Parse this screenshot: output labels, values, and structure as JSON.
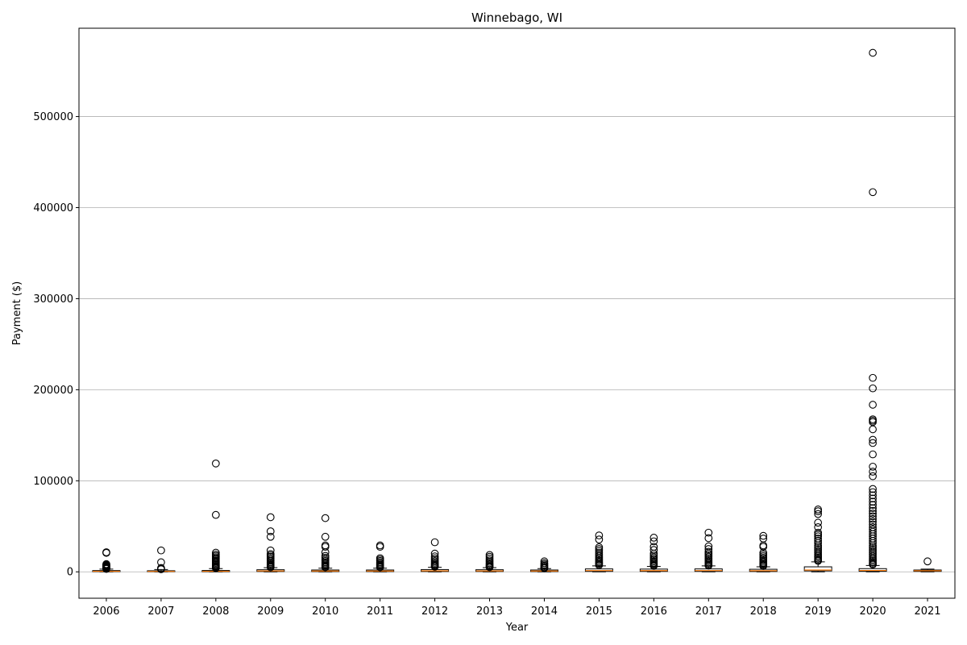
{
  "chart_data": {
    "type": "boxplot",
    "title": "Winnebago, WI",
    "xlabel": "Year",
    "ylabel": "Payment ($)",
    "categories": [
      "2006",
      "2007",
      "2008",
      "2009",
      "2010",
      "2011",
      "2012",
      "2013",
      "2014",
      "2015",
      "2016",
      "2017",
      "2018",
      "2019",
      "2020",
      "2021"
    ],
    "ylim": [
      -29000,
      597000
    ],
    "yticks": [
      0,
      100000,
      200000,
      300000,
      400000,
      500000
    ],
    "ytick_labels": [
      "0",
      "100000",
      "200000",
      "300000",
      "400000",
      "500000"
    ],
    "grid": "y",
    "colors": {
      "box": "#000000",
      "median": "#ff7f0e",
      "grid": "#b0b0b0",
      "flier": "#000000"
    },
    "boxes": [
      {
        "year": "2006",
        "q1": 200,
        "median": 600,
        "q3": 1400,
        "whislo": 0,
        "whishi": 3000,
        "fliers": [
          21500,
          20800,
          8500,
          7800,
          7200,
          6600,
          6000,
          5400,
          4900,
          4400,
          3900,
          3500,
          3200
        ]
      },
      {
        "year": "2007",
        "q1": 150,
        "median": 500,
        "q3": 1200,
        "whislo": 0,
        "whishi": 2500,
        "fliers": [
          23500,
          10500,
          4200,
          3600,
          3100,
          2800
        ]
      },
      {
        "year": "2008",
        "q1": 150,
        "median": 600,
        "q3": 1500,
        "whislo": 0,
        "whishi": 3500,
        "fliers": [
          119000,
          62500,
          21000,
          19000,
          17500,
          16000,
          14800,
          13500,
          12200,
          11000,
          9800,
          8700,
          7600,
          6600,
          5700,
          4800,
          4000
        ]
      },
      {
        "year": "2009",
        "q1": 400,
        "median": 1000,
        "q3": 2300,
        "whislo": 0,
        "whishi": 4500,
        "fliers": [
          60000,
          44500,
          38500,
          23500,
          19500,
          18000,
          16500,
          15000,
          13500,
          12000,
          10500,
          9200,
          8000,
          6900,
          5900,
          5000
        ]
      },
      {
        "year": "2010",
        "q1": 300,
        "median": 900,
        "q3": 2000,
        "whislo": 0,
        "whishi": 4000,
        "fliers": [
          59000,
          38500,
          29000,
          27500,
          21500,
          17500,
          15500,
          13500,
          12000,
          10500,
          9200,
          8000,
          6900,
          5900,
          4900
        ]
      },
      {
        "year": "2011",
        "q1": 300,
        "median": 900,
        "q3": 2000,
        "whislo": 0,
        "whishi": 4000,
        "fliers": [
          29000,
          27500,
          15000,
          13500,
          12000,
          10500,
          9200,
          8000,
          6900,
          5900,
          4900
        ]
      },
      {
        "year": "2012",
        "q1": 400,
        "median": 1100,
        "q3": 2500,
        "whislo": 0,
        "whishi": 5000,
        "fliers": [
          32500,
          20000,
          17000,
          15000,
          13200,
          11500,
          10000,
          8700,
          7500,
          6500,
          5600
        ]
      },
      {
        "year": "2013",
        "q1": 400,
        "median": 1000,
        "q3": 2300,
        "whislo": 0,
        "whishi": 4500,
        "fliers": [
          18500,
          16500,
          14500,
          12500,
          11000,
          9500,
          8200,
          7000,
          6000,
          5100
        ]
      },
      {
        "year": "2014",
        "q1": 300,
        "median": 900,
        "q3": 2000,
        "whislo": 0,
        "whishi": 3500,
        "fliers": [
          11500,
          9500,
          8000,
          6800,
          5700,
          4700,
          3900
        ]
      },
      {
        "year": "2015",
        "q1": 500,
        "median": 1400,
        "q3": 3200,
        "whislo": 0,
        "whishi": 6500,
        "fliers": [
          40000,
          35500,
          27000,
          25000,
          23000,
          21000,
          19000,
          17200,
          15500,
          14000,
          12500,
          11000,
          9700,
          8500,
          7300
        ]
      },
      {
        "year": "2016",
        "q1": 500,
        "median": 1300,
        "q3": 3000,
        "whislo": 0,
        "whishi": 6000,
        "fliers": [
          37500,
          33500,
          27500,
          24000,
          20000,
          18000,
          16000,
          14500,
          13000,
          11500,
          10000,
          8700,
          7500,
          6500
        ]
      },
      {
        "year": "2017",
        "q1": 500,
        "median": 1400,
        "q3": 3200,
        "whislo": 0,
        "whishi": 6500,
        "fliers": [
          43000,
          37000,
          28000,
          25000,
          22000,
          20000,
          18200,
          16500,
          14800,
          13200,
          11700,
          10300,
          9000,
          7800,
          6800
        ]
      },
      {
        "year": "2018",
        "q1": 400,
        "median": 1200,
        "q3": 2800,
        "whislo": 0,
        "whishi": 5500,
        "fliers": [
          39500,
          36500,
          29000,
          27500,
          21000,
          19000,
          17200,
          15500,
          14000,
          12500,
          11000,
          9700,
          8500,
          7400,
          6400
        ]
      },
      {
        "year": "2019",
        "q1": 1000,
        "median": 2000,
        "q3": 5500,
        "whislo": 0,
        "whishi": 11000,
        "fliers": [
          68500,
          66500,
          63500,
          54000,
          49000,
          43000,
          41000,
          39000,
          36500,
          34000,
          31500,
          29000,
          27000,
          25000,
          23000,
          21000,
          19200,
          17500,
          16000,
          14500,
          13000,
          12000
        ]
      },
      {
        "year": "2020",
        "q1": 600,
        "median": 1500,
        "q3": 3500,
        "whislo": 0,
        "whishi": 7000,
        "fliers": [
          570000,
          417000,
          213000,
          201500,
          183500,
          167500,
          166000,
          164500,
          156500,
          145000,
          141500,
          129000,
          115500,
          110000,
          105000,
          91000,
          87500,
          84000,
          80500,
          77000,
          73500,
          70000,
          67000,
          64000,
          61000,
          58000,
          55000,
          52000,
          49000,
          46500,
          44000,
          41500,
          39000,
          36500,
          34000,
          31500,
          29000,
          27000,
          25000,
          23000,
          21000,
          19000,
          17000,
          15200,
          13500,
          12000,
          10500,
          9000,
          8000
        ]
      },
      {
        "year": "2021",
        "q1": 500,
        "median": 1200,
        "q3": 2000,
        "whislo": 0,
        "whishi": 3000,
        "fliers": [
          11500
        ]
      }
    ]
  }
}
